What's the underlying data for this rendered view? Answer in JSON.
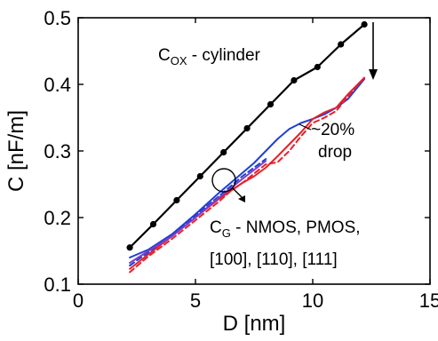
{
  "chart_data": {
    "type": "line",
    "xlabel": "D [nm]",
    "ylabel": "C [nF/m]",
    "xlim": [
      0,
      15
    ],
    "ylim": [
      0.1,
      0.5
    ],
    "xticks": [
      "0",
      "5",
      "10",
      "15"
    ],
    "yticks": [
      "0.1",
      "0.2",
      "0.3",
      "0.4",
      "0.5"
    ],
    "grid": false,
    "colors": {
      "cylinder": "#000000",
      "blue": "#1f3fd6",
      "red": "#e8202a",
      "purple": "#7a3fc8"
    },
    "series": [
      {
        "color": "#000000",
        "marker": "circle",
        "x": [
          2.2,
          3.2,
          4.2,
          5.2,
          6.2,
          7.2,
          8.2,
          9.2,
          10.2,
          11.2,
          12.2
        ],
        "y": [
          0.155,
          0.19,
          0.226,
          0.262,
          0.298,
          0.334,
          0.37,
          0.406,
          0.426,
          0.46,
          0.49
        ]
      },
      {
        "color": "#1f3fd6",
        "x": [
          2.2,
          3.0,
          4.0,
          5.0,
          6.0,
          6.5,
          7.0,
          7.5,
          8.0,
          8.5,
          9.0,
          9.5,
          10.0,
          10.5,
          11.0,
          11.5,
          12.2
        ],
        "y": [
          0.14,
          0.152,
          0.175,
          0.205,
          0.237,
          0.252,
          0.267,
          0.282,
          0.3,
          0.318,
          0.333,
          0.342,
          0.348,
          0.355,
          0.365,
          0.378,
          0.408
        ]
      },
      {
        "color": "#e8202a",
        "x": [
          2.2,
          3.0,
          4.0,
          5.0,
          6.0,
          6.5,
          7.0,
          7.5,
          8.0,
          8.5,
          9.0,
          9.5,
          10.0,
          10.5,
          11.0,
          11.5,
          12.2
        ],
        "y": [
          0.123,
          0.145,
          0.172,
          0.2,
          0.228,
          0.24,
          0.252,
          0.262,
          0.275,
          0.292,
          0.31,
          0.328,
          0.348,
          0.358,
          0.365,
          0.385,
          0.41
        ]
      },
      {
        "color": "#e8202a",
        "dashed": true,
        "x": [
          2.2,
          3.0,
          4.0,
          5.0,
          6.0,
          6.5,
          7.0,
          7.5,
          8.0,
          8.5,
          9.0,
          9.5,
          10.0,
          10.5,
          11.0,
          11.5,
          12.2
        ],
        "y": [
          0.118,
          0.142,
          0.168,
          0.196,
          0.224,
          0.24,
          0.252,
          0.266,
          0.28,
          0.283,
          0.3,
          0.322,
          0.342,
          0.35,
          0.36,
          0.382,
          0.41
        ]
      },
      {
        "color": "#1f3fd6",
        "dashed": true,
        "x": [
          2.2,
          3.0,
          4.0,
          5.0,
          6.0,
          7.0,
          8.0
        ],
        "y": [
          0.128,
          0.148,
          0.174,
          0.203,
          0.232,
          0.262,
          0.288
        ]
      },
      {
        "color": "#7a3fc8",
        "x": [
          2.2,
          3.0,
          4.0,
          5.0,
          6.0,
          7.0,
          8.0
        ],
        "y": [
          0.132,
          0.15,
          0.172,
          0.2,
          0.23,
          0.258,
          0.285
        ]
      }
    ],
    "annotations": {
      "cox_main": "C",
      "cox_sub": "OX",
      "cox_rest": " - cylinder",
      "drop_line1": "~20%",
      "drop_line2": "drop",
      "cg_main": "C",
      "cg_sub": "G",
      "cg_rest": " - NMOS, PMOS,",
      "cg_line2": "[100], [110], [111]"
    }
  }
}
